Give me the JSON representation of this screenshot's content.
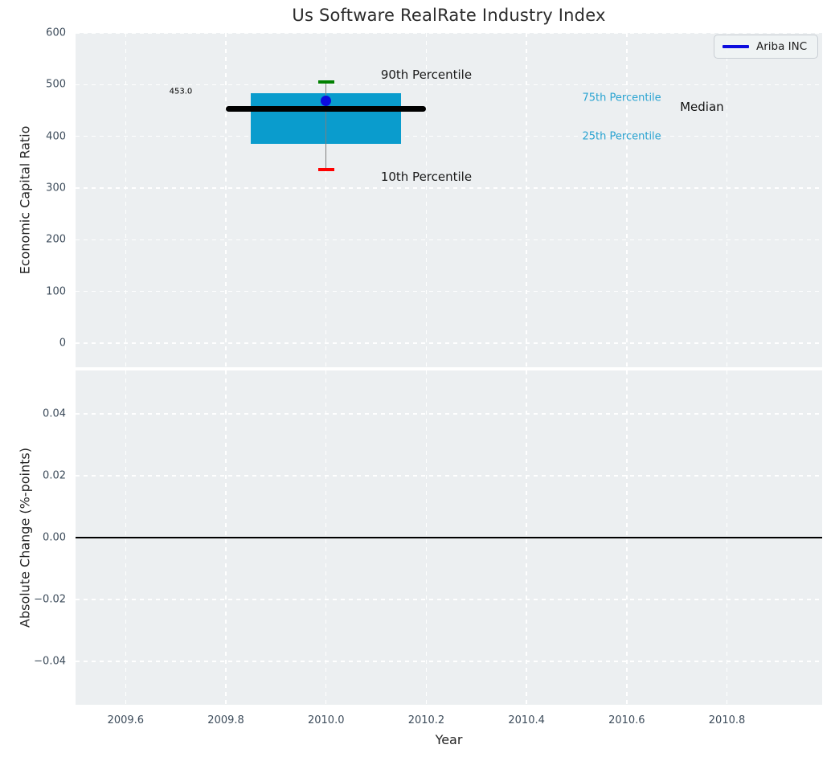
{
  "title": "Us Software RealRate Industry Index",
  "legend": {
    "label": "Ariba INC"
  },
  "colors": {
    "axes_background": "#eceff1",
    "grid": "#ffffff",
    "box_fill": "#0a9ccd",
    "median_line": "#000000",
    "cap_90th": "#008000",
    "cap_10th": "#ff0000",
    "whisker": "#7f7f7f",
    "company_dot": "#0d0dde",
    "legend_line": "#0d0dde",
    "percentile_label": "#29a3d1",
    "tick_label": "#3d4c5b",
    "zero_line": "#000000"
  },
  "x_axis": {
    "label": "Year",
    "xlim": [
      2009.5,
      2010.99
    ],
    "ticks": [
      {
        "v": 2009.6,
        "label": "2009.6"
      },
      {
        "v": 2009.8,
        "label": "2009.8"
      },
      {
        "v": 2010.0,
        "label": "2010.0"
      },
      {
        "v": 2010.2,
        "label": "2010.2"
      },
      {
        "v": 2010.4,
        "label": "2010.4"
      },
      {
        "v": 2010.6,
        "label": "2010.6"
      },
      {
        "v": 2010.8,
        "label": "2010.8"
      }
    ]
  },
  "chart_data": [
    {
      "type": "boxplot",
      "title": "Us Software RealRate Industry Index",
      "ylabel": "Economic Capital Ratio",
      "ylim": [
        -46.6,
        600
      ],
      "grid": "white dashed on",
      "legend_position": "upper right",
      "yticks": [
        {
          "v": 0,
          "label": "0"
        },
        {
          "v": 100,
          "label": "100"
        },
        {
          "v": 200,
          "label": "200"
        },
        {
          "v": 300,
          "label": "300"
        },
        {
          "v": 400,
          "label": "400"
        },
        {
          "v": 500,
          "label": "500"
        },
        {
          "v": 600,
          "label": "600"
        }
      ],
      "box": {
        "x_center": 2010.0,
        "p90": 505,
        "p75": 483,
        "median": 453,
        "p25": 386,
        "p10": 336,
        "median_value_label": "453.0",
        "box_x_range": [
          2009.85,
          2010.15
        ],
        "median_x_range": [
          2009.8,
          2010.2
        ]
      },
      "series": [
        {
          "name": "Ariba INC",
          "x": 2010.0,
          "value": 468,
          "marker": "circle"
        }
      ],
      "annotations": [
        {
          "text": "453.0",
          "x": 2009.71,
          "y": 486.5,
          "color": "#000000",
          "size": 10
        },
        {
          "text": "90th Percentile",
          "x": 2010.2,
          "y": 519,
          "color": "#1a1a1a",
          "size": 15
        },
        {
          "text": "10th Percentile",
          "x": 2010.2,
          "y": 322,
          "color": "#1a1a1a",
          "size": 15
        },
        {
          "text": "75th Percentile",
          "x": 2010.59,
          "y": 474,
          "color": "#29a3d1",
          "size": 13
        },
        {
          "text": "25th Percentile",
          "x": 2010.59,
          "y": 400,
          "color": "#29a3d1",
          "size": 13
        },
        {
          "text": "Median",
          "x": 2010.75,
          "y": 457,
          "color": "#111111",
          "size": 15
        }
      ]
    },
    {
      "type": "line",
      "ylabel": "Absolute Change (%-points)",
      "xlabel": "Year",
      "ylim": [
        -0.054,
        0.054
      ],
      "grid": "white dashed on",
      "yticks": [
        {
          "v": 0.04,
          "label": "0.04"
        },
        {
          "v": 0.02,
          "label": "0.02"
        },
        {
          "v": 0.0,
          "label": "0.00"
        },
        {
          "v": -0.02,
          "label": "−0.02"
        },
        {
          "v": -0.04,
          "label": "−0.04"
        }
      ],
      "zero_line_y": 0.0,
      "series": []
    }
  ]
}
